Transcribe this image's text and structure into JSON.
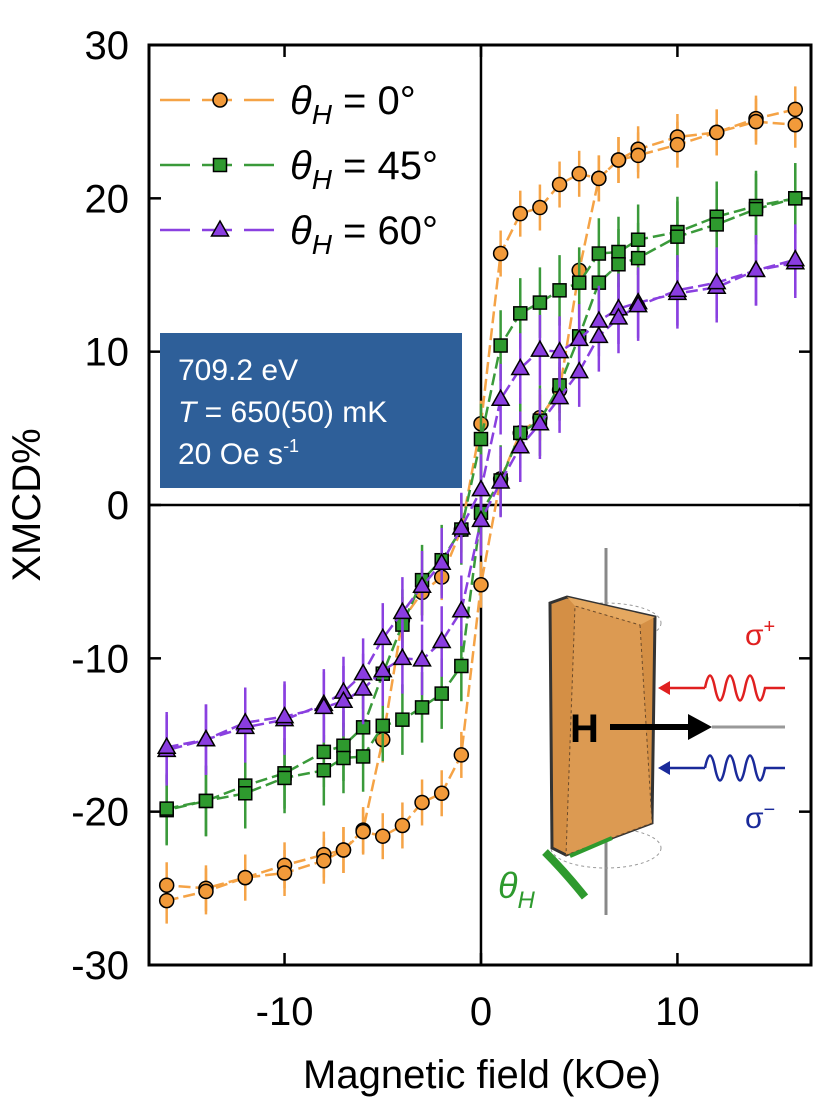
{
  "chart_data": {
    "type": "line",
    "x_label": "Magnetic field (kOe)",
    "y_label": "XMCD%",
    "xlim": [
      -16.9,
      16.8
    ],
    "ylim": [
      -30,
      30
    ],
    "xticks": [
      -10,
      0,
      10
    ],
    "yticks": [
      -30,
      -20,
      -10,
      0,
      10,
      20,
      30
    ],
    "zero_lines": true,
    "x": [
      16,
      14,
      12,
      10,
      8,
      7,
      6,
      5,
      4,
      3,
      2,
      1,
      0,
      -1,
      -2,
      -3,
      -4,
      -5,
      -6,
      -7,
      -8,
      -10,
      -12,
      -14,
      -16,
      null,
      -16,
      -14,
      -12,
      -10,
      -8,
      -7,
      -6,
      -5,
      -4,
      -3,
      -2,
      -1,
      0,
      1,
      2,
      3,
      4,
      5,
      6,
      7,
      8,
      10,
      12,
      14,
      16
    ],
    "series": [
      {
        "name": "θH = 0°",
        "color": "#f29a3a",
        "line_color": "#f5a346",
        "marker": "circle",
        "error": 1.5,
        "values": [
          25.8,
          25.2,
          24.3,
          24.0,
          23.2,
          22.5,
          21.3,
          21.6,
          20.9,
          19.4,
          19.0,
          16.4,
          5.3,
          -1.6,
          -4.7,
          -5.7,
          -7.5,
          -15.3,
          -21.2,
          -22.5,
          -22.8,
          -23.5,
          -24.3,
          -25.0,
          -24.8,
          null,
          -25.8,
          -25.2,
          -24.3,
          -24.0,
          -23.2,
          -22.5,
          -21.3,
          -21.6,
          -20.9,
          -19.4,
          -18.8,
          -16.3,
          -5.2,
          1.7,
          4.7,
          5.7,
          7.5,
          15.3,
          21.3,
          22.5,
          22.8,
          23.5,
          24.3,
          25.0,
          24.8
        ]
      },
      {
        "name": "θH = 45°",
        "color": "#2e9a2e",
        "line_color": "#3a9a3a",
        "marker": "square",
        "error": 2.3,
        "values": [
          20.0,
          19.5,
          18.8,
          17.8,
          17.3,
          16.5,
          16.4,
          14.5,
          14.0,
          13.2,
          12.5,
          10.4,
          4.3,
          -1.6,
          -3.6,
          -4.9,
          -7.8,
          -11.0,
          -14.5,
          -15.7,
          -16.1,
          -17.5,
          -18.3,
          -19.3,
          -19.9,
          null,
          -19.8,
          -19.3,
          -18.8,
          -17.8,
          -17.3,
          -16.5,
          -16.4,
          -14.4,
          -14.0,
          -13.2,
          -12.3,
          -10.5,
          -0.5,
          1.6,
          4.7,
          5.5,
          7.8,
          11.0,
          14.5,
          15.7,
          16.1,
          17.5,
          18.3,
          19.3,
          20.0
        ]
      },
      {
        "name": "θH = 60°",
        "color": "#8a3de0",
        "line_color": "#8a40e0",
        "marker": "triangle",
        "error": 2.3,
        "values": [
          15.8,
          15.3,
          14.2,
          13.8,
          13.2,
          12.8,
          12.0,
          10.8,
          10.0,
          10.1,
          8.9,
          6.9,
          1.0,
          -1.5,
          -3.8,
          -5.3,
          -7.0,
          -8.7,
          -11.0,
          -12.2,
          -13.0,
          -14.0,
          -14.5,
          -15.3,
          -16.0,
          null,
          -15.8,
          -15.3,
          -14.2,
          -13.8,
          -13.2,
          -12.8,
          -12.0,
          -10.8,
          -10.0,
          -10.1,
          -8.9,
          -6.9,
          -1.0,
          1.5,
          3.8,
          5.3,
          7.0,
          8.7,
          11.0,
          12.2,
          13.0,
          14.0,
          14.5,
          15.3,
          16.0
        ]
      }
    ],
    "info_box": {
      "line1": "709.2 eV",
      "line2_italic": "T",
      "line2_rest": " = 650(50) mK",
      "line3": "20 Oe s",
      "line3_sup": "-1",
      "color": "#2e5f99"
    },
    "inset": {
      "field": "H",
      "sigma": "σ",
      "plus": "+",
      "minus": "−",
      "theta": "θ",
      "theta_sub": "H"
    }
  }
}
